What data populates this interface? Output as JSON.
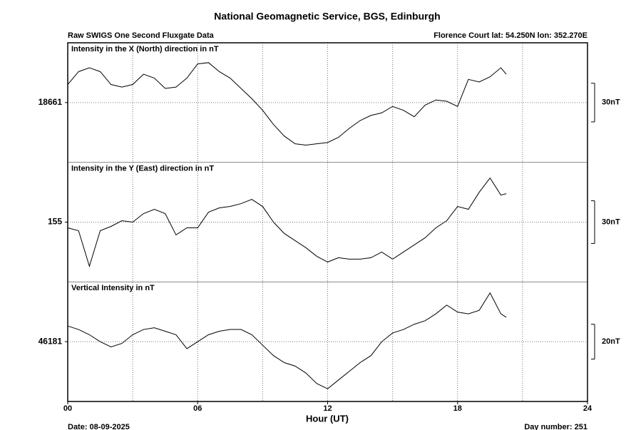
{
  "page": {
    "title": "National Geomagnetic Service, BGS, Edinburgh",
    "header_left": "Raw SWIGS One Second Fluxgate Data",
    "header_right": "Florence Court  lat: 54.250N lon: 352.270E",
    "footer_left": "Date: 08-09-2025",
    "footer_right": "Day number:  251"
  },
  "time_axis": {
    "label": "Hour (UT)",
    "xlim": [
      0,
      24
    ],
    "xticks": [
      {
        "value": 0,
        "label": "00"
      },
      {
        "value": 6,
        "label": "06"
      },
      12,
      18,
      24
    ],
    "xminor": [
      3,
      9,
      15,
      21
    ],
    "grid": true
  },
  "chart_data": [
    {
      "type": "line",
      "label": "Intensity in the X (North) direction in nT",
      "color": "#000000",
      "x": [
        0,
        0.5,
        1,
        1.5,
        2,
        2.5,
        3,
        3.5,
        4,
        4.5,
        5,
        5.5,
        6,
        6.5,
        7,
        7.5,
        8,
        8.5,
        9,
        9.5,
        10,
        10.5,
        11,
        11.5,
        12,
        12.5,
        13,
        13.5,
        14,
        14.5,
        15,
        15.5,
        16,
        16.5,
        17,
        17.5,
        18,
        18.5,
        19,
        19.5,
        20,
        20.25
      ],
      "values": [
        18675,
        18685,
        18688,
        18685,
        18675,
        18673,
        18675,
        18683,
        18680,
        18672,
        18673,
        18680,
        18691,
        18692,
        18685,
        18680,
        18672,
        18664,
        18655,
        18644,
        18635,
        18629,
        18628,
        18629,
        18630,
        18634,
        18641,
        18647,
        18651,
        18653,
        18658,
        18655,
        18650,
        18659,
        18663,
        18662,
        18658,
        18679,
        18677,
        18681,
        18688,
        18683
      ],
      "ylim": [
        18614.6,
        18707.4
      ],
      "yticks": [
        18661
      ],
      "grid": true,
      "scale_bar": {
        "value": 30,
        "label": "30nT"
      }
    },
    {
      "type": "line",
      "label": "Intensity in the Y (East) direction in nT",
      "color": "#000000",
      "x": [
        0,
        0.5,
        1,
        1.5,
        2,
        2.5,
        3,
        3.5,
        4,
        4.5,
        5,
        5.5,
        6,
        6.5,
        7,
        7.5,
        8,
        8.5,
        9,
        9.5,
        10,
        10.5,
        11,
        11.5,
        12,
        12.5,
        13,
        13.5,
        14,
        14.5,
        15,
        15.5,
        16,
        16.5,
        17,
        17.5,
        18,
        18.5,
        19,
        19.5,
        20,
        20.25
      ],
      "values": [
        151,
        149,
        124,
        149,
        152,
        156,
        155,
        161,
        164,
        161,
        146,
        151,
        151,
        162,
        165,
        166,
        168,
        171,
        166,
        155,
        147,
        142,
        137,
        131,
        127,
        130,
        129,
        129,
        130,
        134,
        129,
        134,
        139,
        144,
        151,
        156,
        166,
        164,
        176,
        186,
        174,
        175
      ],
      "ylim": [
        113,
        197
      ],
      "yticks": [
        155
      ],
      "grid": true,
      "scale_bar": {
        "value": 30,
        "label": "30nT"
      }
    },
    {
      "type": "line",
      "label": "Vertical Intensity in nT",
      "color": "#000000",
      "x": [
        0,
        0.5,
        1,
        1.5,
        2,
        2.5,
        3,
        3.5,
        4,
        4.5,
        5,
        5.5,
        6,
        6.5,
        7,
        7.5,
        8,
        8.5,
        9,
        9.5,
        10,
        10.5,
        11,
        11.5,
        12,
        12.5,
        13,
        13.5,
        14,
        14.5,
        15,
        15.5,
        16,
        16.5,
        17,
        17.5,
        18,
        18.5,
        19,
        19.5,
        20,
        20.25
      ],
      "values": [
        46190,
        46188,
        46185,
        46181,
        46178,
        46180,
        46185,
        46188,
        46189,
        46187,
        46185,
        46177,
        46181,
        46185,
        46187,
        46188,
        46188,
        46185,
        46179,
        46173,
        46169,
        46167,
        46163,
        46157,
        46154,
        46159,
        46164,
        46169,
        46173,
        46181,
        46186,
        46188,
        46191,
        46193,
        46197,
        46202,
        46198,
        46197,
        46199,
        46209,
        46197,
        46195
      ],
      "ylim": [
        46146.7,
        46215.3
      ],
      "yticks": [
        46181
      ],
      "grid": true,
      "scale_bar": {
        "value": 20,
        "label": "20nT"
      }
    }
  ]
}
